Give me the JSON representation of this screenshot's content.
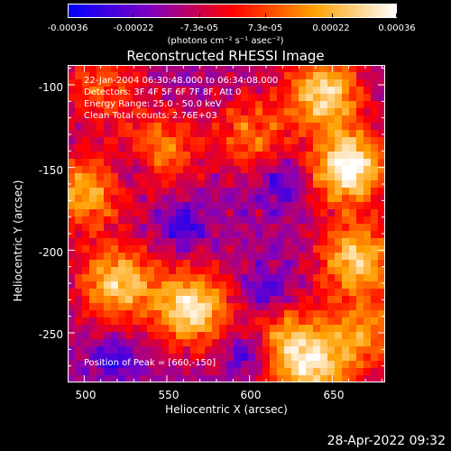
{
  "colorbar": {
    "ticks": [
      "-0.00036",
      "-0.00022",
      "-7.3e-05",
      "7.3e-05",
      "0.00022",
      "0.00036"
    ],
    "tick_values": [
      -0.00036,
      -0.00022,
      -7.3e-05,
      7.3e-05,
      0.00022,
      0.00036
    ],
    "range": [
      -0.00036,
      0.00036
    ],
    "unit_label": "(photons cm⁻² s⁻¹ asec⁻²)",
    "colors": [
      "#0000ff",
      "#8000c0",
      "#ff0000",
      "#ffa000",
      "#ffffff"
    ]
  },
  "chart_data": {
    "type": "heatmap",
    "title": "Reconstructed RHESSI Image",
    "xlabel": "Heliocentric X (arcsec)",
    "ylabel": "Heliocentric Y (arcsec)",
    "xlim": [
      490,
      682
    ],
    "ylim": [
      -280,
      -88
    ],
    "xticks": [
      500,
      550,
      600,
      650
    ],
    "yticks": [
      -100,
      -150,
      -200,
      -250
    ],
    "annotations": [
      "22-Jan-2004 06:30:48.000 to 06:34:08.000",
      "Detectors: 3F 4F 5F 6F 7F 8F, Att 0",
      "Energy Range: 25.0 - 50.0 keV",
      "Clean    Total counts: 2.76E+03"
    ],
    "peak_label": "Position of Peak = [660,-150]",
    "peak_position": [
      660,
      -150
    ],
    "sources": [
      {
        "x": 660,
        "y": -150,
        "intensity": 1.0
      },
      {
        "x": 565,
        "y": -235,
        "intensity": 0.95
      },
      {
        "x": 520,
        "y": -220,
        "intensity": 0.8
      },
      {
        "x": 645,
        "y": -105,
        "intensity": 0.85
      },
      {
        "x": 665,
        "y": -205,
        "intensity": 0.8
      },
      {
        "x": 500,
        "y": -165,
        "intensity": 0.7
      },
      {
        "x": 545,
        "y": -140,
        "intensity": 0.55
      },
      {
        "x": 600,
        "y": -130,
        "intensity": 0.5
      },
      {
        "x": 625,
        "y": -255,
        "intensity": 0.6
      },
      {
        "x": 640,
        "y": -275,
        "intensity": 0.65
      },
      {
        "x": 510,
        "y": -100,
        "intensity": 0.45
      },
      {
        "x": 670,
        "y": -250,
        "intensity": 0.55
      }
    ],
    "negative_regions": [
      {
        "x": 598,
        "y": -262
      },
      {
        "x": 560,
        "y": -185
      },
      {
        "x": 520,
        "y": -265
      },
      {
        "x": 610,
        "y": -225
      },
      {
        "x": 530,
        "y": -150
      },
      {
        "x": 620,
        "y": -160
      }
    ]
  },
  "footer": {
    "date": "28-Apr-2022 09:32"
  }
}
